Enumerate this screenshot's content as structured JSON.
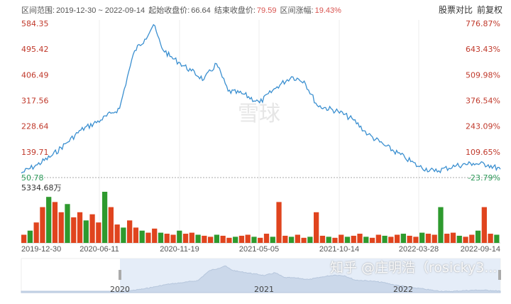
{
  "header": {
    "range_label": "区间范围:",
    "range_value": "2019-12-30 ~ 2022-09-14",
    "start_label": "起始收盘价:",
    "start_value": "66.64",
    "end_label": "结束收盘价:",
    "end_value": "79.59",
    "change_label": "区间涨幅:",
    "change_value": "19.43%",
    "compare_button": "股票对比",
    "adjust_button": "前复权"
  },
  "watermark_center": "雪球",
  "watermark_bottom": "知乎 @庄明浩（rosicky3...",
  "navigator": {
    "years": [
      "2020",
      "2021",
      "2022"
    ]
  },
  "colors": {
    "line": "#3a8fd0",
    "up": "#e0441e",
    "down": "#2e9a2e",
    "left_axis": "#c0392b",
    "right_axis": "#c0392b",
    "last_pct": "#2e9a5a"
  },
  "chart_data": {
    "type": "line",
    "y_ticks_left": [
      "584.35",
      "495.42",
      "406.49",
      "317.56",
      "228.64",
      "139.71",
      "50.78"
    ],
    "y_ticks_right": [
      "776.87%",
      "643.43%",
      "509.98%",
      "376.54%",
      "243.09%",
      "109.65%",
      "-23.79%"
    ],
    "ylim": [
      50.78,
      584.35
    ],
    "x_ticks": [
      "2019-12-30",
      "2020-06-11",
      "2020-11-19",
      "2021-05-05",
      "2021-10-14",
      "2022-03-28",
      "2022-09-14"
    ],
    "volume_max_label": "5334.68万",
    "series": [
      {
        "x": [
          "2019-12-30",
          "2020-02-01",
          "2020-03-01",
          "2020-04-01",
          "2020-05-01",
          "2020-06-11",
          "2020-07-05",
          "2020-07-20",
          "2020-08-05",
          "2020-08-20",
          "2020-09-10",
          "2020-09-28",
          "2020-10-15",
          "2020-11-01",
          "2020-11-19",
          "2020-12-15",
          "2021-01-10",
          "2021-02-05",
          "2021-03-01",
          "2021-04-01",
          "2021-05-05",
          "2021-06-10",
          "2021-07-10",
          "2021-08-05",
          "2021-09-01",
          "2021-10-14",
          "2021-11-15",
          "2021-12-15",
          "2022-01-20",
          "2022-03-01",
          "2022-03-28",
          "2022-05-01",
          "2022-06-15",
          "2022-07-20",
          "2022-08-20",
          "2022-09-14"
        ],
        "y": [
          66.6,
          95,
          125,
          170,
          215,
          250,
          275,
          290,
          400,
          490,
          530,
          580,
          500,
          470,
          450,
          420,
          390,
          445,
          350,
          340,
          310,
          365,
          400,
          385,
          300,
          280,
          250,
          200,
          160,
          120,
          90,
          72,
          92,
          100,
          95,
          79.59
        ]
      }
    ],
    "volume": [
      8,
      12,
      20,
      35,
      45,
      40,
      30,
      38,
      25,
      30,
      22,
      28,
      20,
      50,
      35,
      18,
      15,
      22,
      15,
      12,
      10,
      14,
      10,
      9,
      8,
      12,
      9,
      10,
      8,
      7,
      6,
      8,
      7,
      5,
      6,
      7,
      8,
      6,
      5,
      9,
      6,
      40,
      7,
      6,
      8,
      5,
      6,
      30,
      7,
      6,
      5,
      8,
      6,
      7,
      9,
      6,
      5,
      8,
      7,
      6,
      8,
      9,
      7,
      6,
      10,
      9,
      8,
      35,
      9,
      10,
      7,
      6,
      8,
      12,
      35,
      9,
      8
    ]
  }
}
